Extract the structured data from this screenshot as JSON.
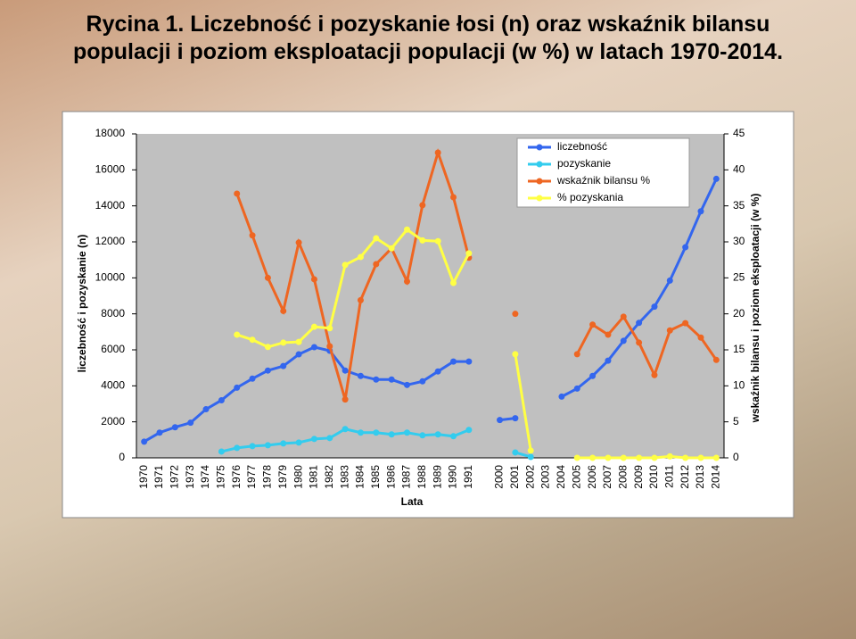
{
  "chart_data": {
    "type": "line",
    "title": "Rycina 1. Liczebność i pozyskanie łosi (n) oraz wskaźnik bilansu populacji i poziom eksploatacji populacji (w %) w latach 1970-2014.",
    "x_label": "Lata",
    "y_label": "liczebność i pozyskanie (n)",
    "y2_label": "wskaźnik bilansu i poziom eksploatacji (w %)",
    "categories": [
      "1970",
      "1971",
      "1972",
      "1973",
      "1974",
      "1975",
      "1976",
      "1977",
      "1978",
      "1979",
      "1980",
      "1981",
      "1982",
      "1983",
      "1984",
      "1985",
      "1986",
      "1987",
      "1988",
      "1989",
      "1990",
      "1991",
      null,
      "2000",
      "2001",
      "2002",
      "2003",
      "2004",
      "2005",
      "2006",
      "2007",
      "2008",
      "2009",
      "2010",
      "2011",
      "2012",
      "2013",
      "2014"
    ],
    "ylim": [
      0,
      18000
    ],
    "yticks": [
      0,
      2000,
      4000,
      6000,
      8000,
      10000,
      12000,
      14000,
      16000,
      18000
    ],
    "y2lim": [
      0,
      45
    ],
    "y2ticks": [
      0,
      5,
      10,
      15,
      20,
      25,
      30,
      35,
      40,
      45
    ],
    "legend": "top-right",
    "series": [
      {
        "name": "liczebność",
        "color": "#3366ee",
        "values": [
          900,
          1400,
          1700,
          1950,
          2700,
          3200,
          3900,
          4400,
          4850,
          5100,
          5750,
          6150,
          5950,
          4850,
          4550,
          4350,
          4350,
          4050,
          4250,
          4800,
          5350,
          5350,
          null,
          2100,
          2200,
          null,
          null,
          3400,
          3850,
          4550,
          5400,
          6500,
          7500,
          8400,
          9850,
          11700,
          13700,
          15500
        ]
      },
      {
        "name": "pozyskanie",
        "color": "#33ccee",
        "values": [
          null,
          null,
          null,
          null,
          null,
          350,
          550,
          650,
          700,
          800,
          850,
          1050,
          1100,
          1600,
          1400,
          1400,
          1300,
          1400,
          1250,
          1300,
          1200,
          1550,
          null,
          null,
          300,
          50,
          null,
          null,
          null,
          null,
          null,
          null,
          null,
          null,
          null,
          null,
          null,
          null
        ]
      },
      {
        "name": "wskaźnik bilansu %",
        "color": "#ee6622",
        "axis": "y2",
        "values": [
          null,
          null,
          null,
          null,
          null,
          null,
          36.7,
          30.9,
          25,
          20.4,
          29.9,
          24.8,
          15.5,
          8.1,
          21.9,
          26.9,
          29.1,
          24.5,
          35.1,
          42.4,
          36.2,
          27.8,
          null,
          null,
          20,
          null,
          null,
          null,
          14.4,
          18.5,
          17.1,
          19.6,
          16,
          11.5,
          17.7,
          18.7,
          16.7,
          13.6
        ]
      },
      {
        "name": "% pozyskania",
        "color": "#ffff44",
        "axis": "y2",
        "values": [
          null,
          null,
          null,
          null,
          null,
          null,
          17.1,
          16.4,
          15.4,
          16,
          16.1,
          18.2,
          18,
          26.8,
          27.9,
          30.5,
          29.1,
          31.7,
          30.2,
          30.1,
          24.3,
          28.4,
          null,
          null,
          14.4,
          1,
          null,
          null,
          0,
          0,
          0,
          0,
          0,
          0,
          0.2,
          0,
          0,
          0
        ]
      }
    ]
  }
}
